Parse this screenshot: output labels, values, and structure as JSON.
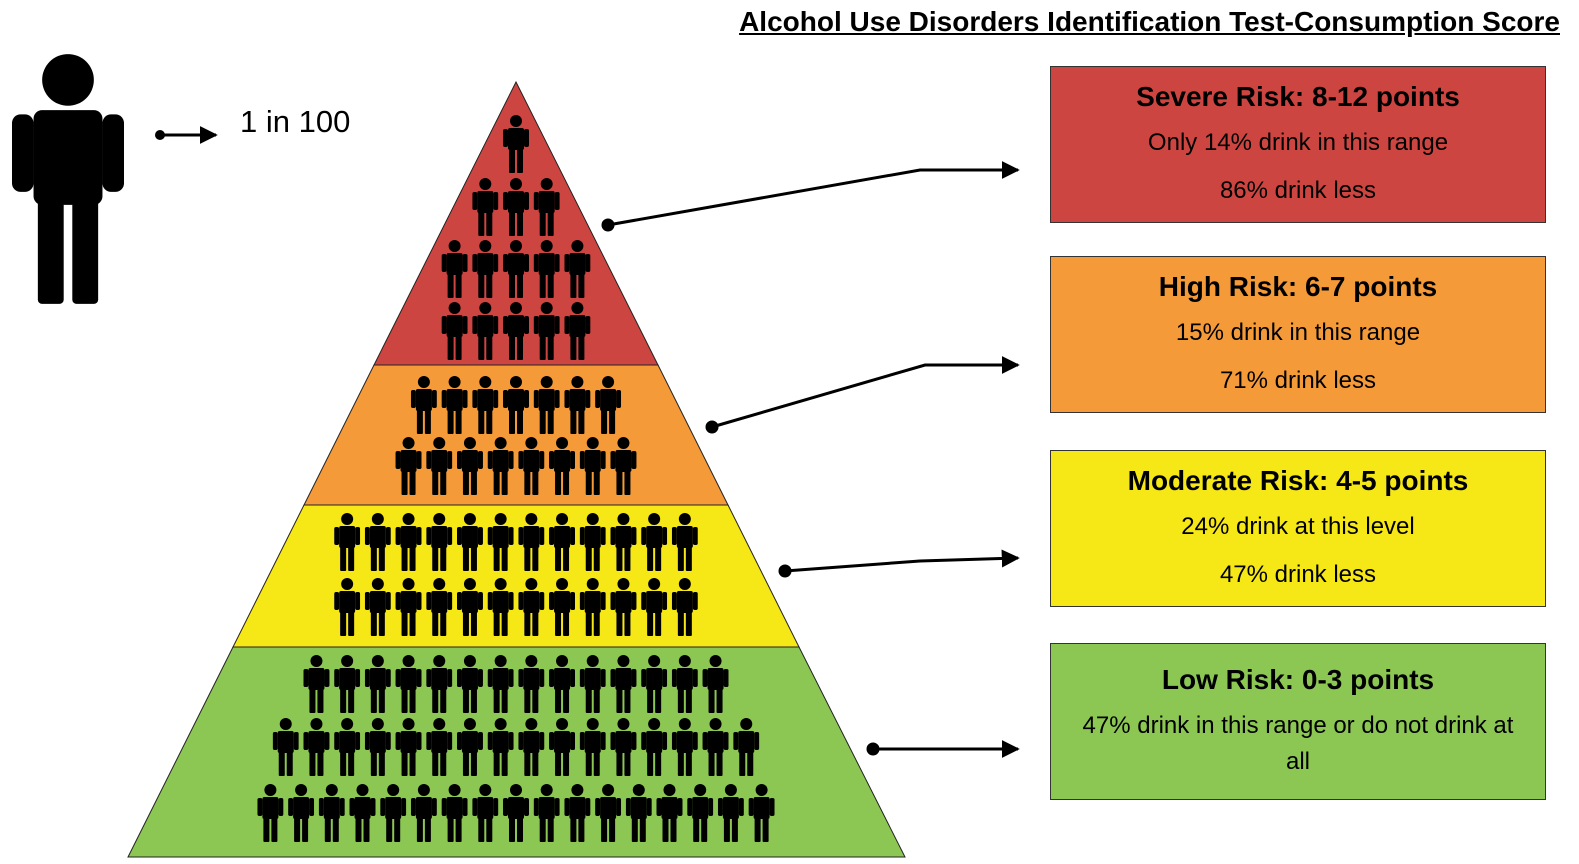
{
  "title": "Alcohol Use Disorders Identification Test-Consumption Score",
  "legend": {
    "label": "1 in 100"
  },
  "tiers": [
    {
      "title": "Severe Risk: 8-12 points",
      "lines": [
        "Only  14% drink in this range",
        "86% drink less"
      ]
    },
    {
      "title": "High Risk: 6-7 points",
      "lines": [
        "15% drink in this range",
        "71% drink less"
      ]
    },
    {
      "title": "Moderate Risk: 4-5 points",
      "lines": [
        "24% drink at this level",
        "47% drink less"
      ]
    },
    {
      "title": "Low Risk: 0-3 points",
      "lines": [
        "47% drink in this range or do not drink at all"
      ]
    }
  ]
}
